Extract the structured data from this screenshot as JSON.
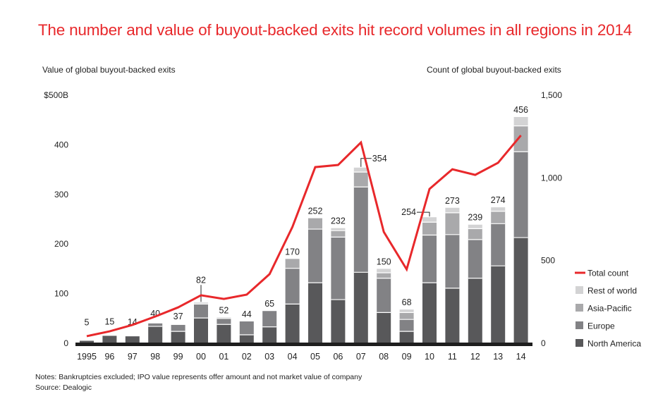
{
  "title": "The number and value of buyout-backed exits hit record volumes in all regions in 2014",
  "notes": {
    "line1": "Notes: Bankruptcies excluded; IPO value represents offer amount and not market value of company",
    "line2": "Source: Dealogic"
  },
  "colors": {
    "title": "#e8282b",
    "total_count": "#e8282b",
    "rest_of_world": "#d3d3d4",
    "asia_pacific": "#a9a9ab",
    "europe": "#828285",
    "north_america": "#58585a",
    "axis": "#1e1e1e"
  },
  "chart_data": {
    "type": "bar",
    "subtype": "stacked-bar-with-line",
    "title": "The number and value of buyout-backed exits hit record volumes in all regions in 2014",
    "ylabel": "Value of global buyout-backed exits",
    "y2label": "Count of global buyout-backed exits",
    "xlabel": "",
    "ylim": [
      0,
      500
    ],
    "y2lim": [
      0,
      1500
    ],
    "yticks": [
      "0",
      "100",
      "200",
      "300",
      "400",
      "$500B"
    ],
    "y2ticks": [
      "0",
      "500",
      "1,000",
      "1,500"
    ],
    "grid": false,
    "legend_position": "bottom-right",
    "categories": [
      "1995",
      "96",
      "97",
      "98",
      "99",
      "00",
      "01",
      "02",
      "03",
      "04",
      "05",
      "06",
      "07",
      "08",
      "09",
      "10",
      "11",
      "12",
      "13",
      "14"
    ],
    "series": [
      {
        "name": "North America",
        "color_key": "north_america",
        "values": [
          5,
          15,
          14,
          34,
          24,
          51,
          38,
          17,
          33,
          79,
          122,
          88,
          143,
          62,
          24,
          122,
          111,
          131,
          156,
          213
        ]
      },
      {
        "name": "Europe",
        "color_key": "europe",
        "values": [
          0,
          0,
          0,
          6,
          13,
          28,
          12,
          27,
          32,
          72,
          108,
          126,
          172,
          69,
          24,
          96,
          108,
          78,
          85,
          173
        ]
      },
      {
        "name": "Asia-Pacific",
        "color_key": "asia_pacific",
        "values": [
          0,
          0,
          0,
          0,
          0,
          0,
          0,
          0,
          0,
          19,
          22,
          13,
          30,
          11,
          14,
          26,
          44,
          22,
          25,
          52
        ]
      },
      {
        "name": "Rest of world",
        "color_key": "rest_of_world",
        "values": [
          0,
          0,
          0,
          0,
          0,
          3,
          2,
          0,
          0,
          0,
          0,
          5,
          9,
          8,
          6,
          10,
          10,
          8,
          8,
          18
        ]
      }
    ],
    "totals": [
      5,
      15,
      14,
      40,
      37,
      82,
      52,
      44,
      65,
      170,
      252,
      232,
      354,
      150,
      68,
      254,
      273,
      239,
      274,
      456
    ],
    "total_labels": [
      "5",
      "15",
      "14",
      "40",
      "37",
      "82",
      "52",
      "44",
      "65",
      "170",
      "252",
      "232",
      "354",
      "150",
      "68",
      "254",
      "273",
      "239",
      "274",
      "456"
    ],
    "line_series": {
      "name": "Total count",
      "axis": "right",
      "color_key": "total_count",
      "values": [
        43,
        72,
        111,
        162,
        217,
        290,
        268,
        294,
        418,
        703,
        1065,
        1078,
        1214,
        673,
        447,
        933,
        1052,
        1018,
        1091,
        1257
      ]
    },
    "legend": [
      "Total count",
      "Rest of world",
      "Asia-Pacific",
      "Europe",
      "North America"
    ]
  }
}
